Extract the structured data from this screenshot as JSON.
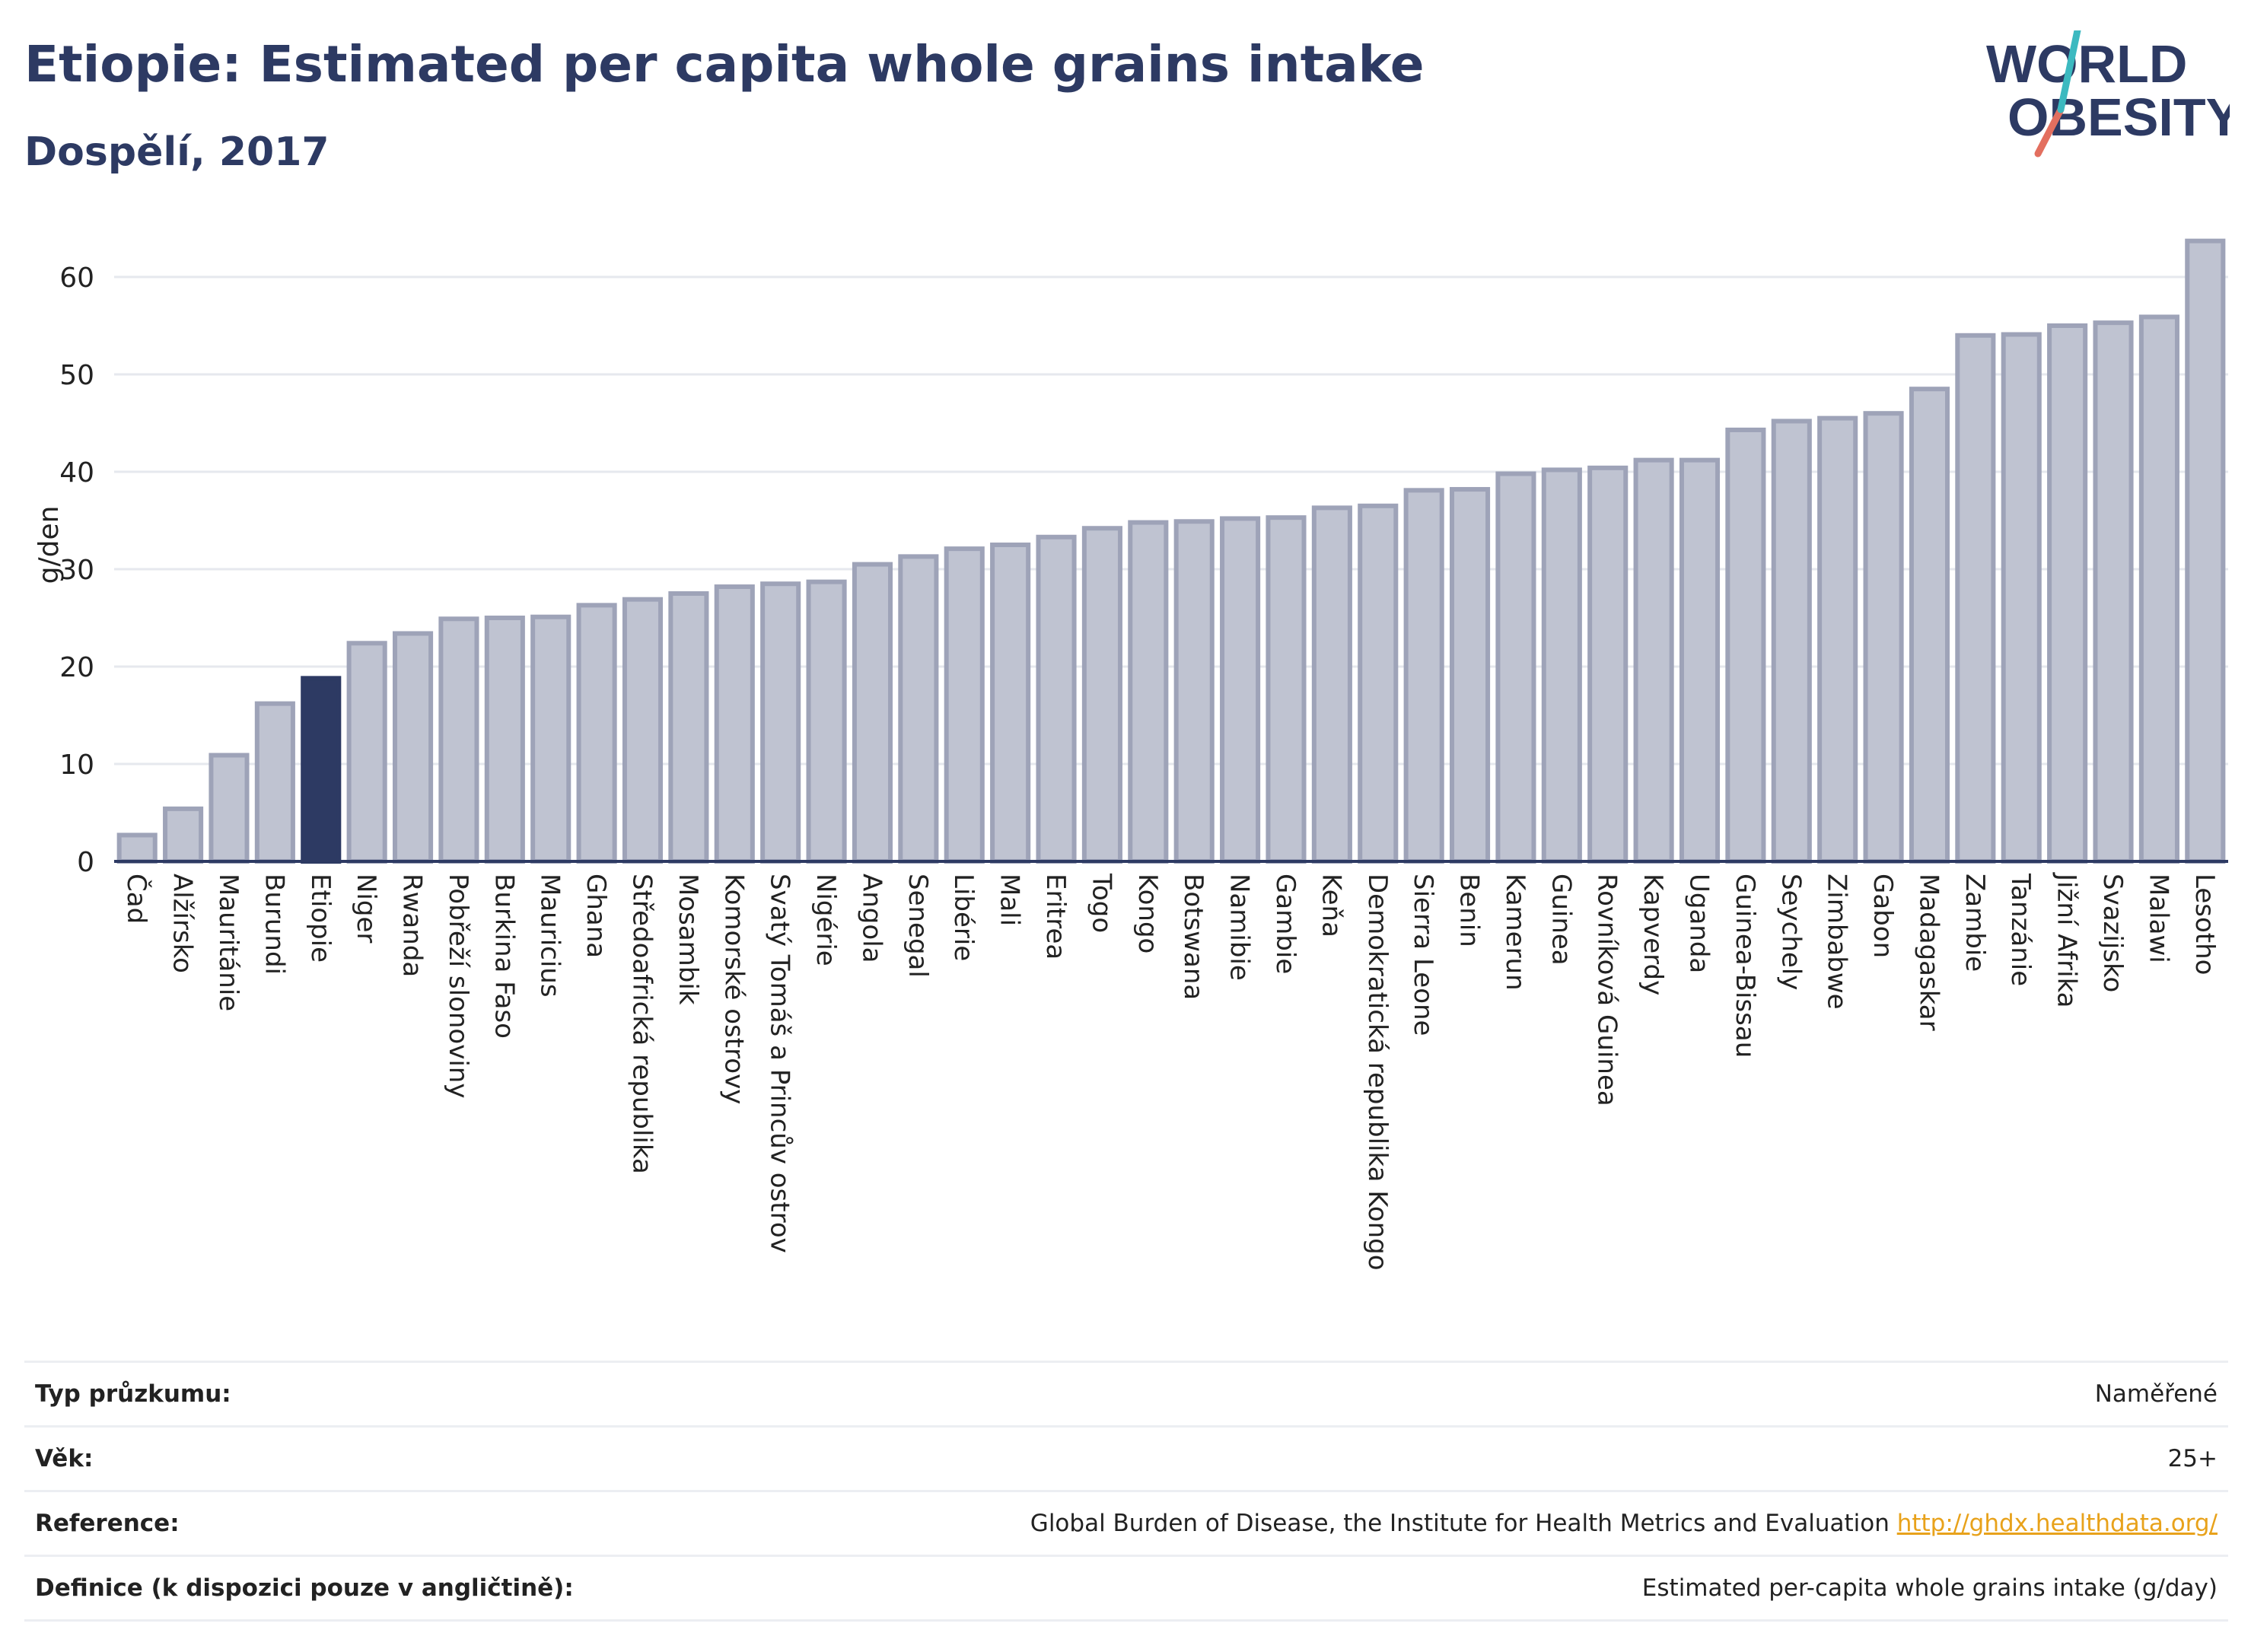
{
  "header": {
    "title": "Etiopie: Estimated per capita whole grains intake",
    "subtitle": "Dospělí, 2017"
  },
  "logo": {
    "line1": "WORLD",
    "line2": "OBESITY"
  },
  "colors": {
    "highlight": "#2d3a63",
    "bar_fill": "#bfc3d1",
    "bar_stroke": "#9ea3b8",
    "grid": "#e6e8ee",
    "axis": "#2d3a63"
  },
  "chart_data": {
    "type": "bar",
    "ylabel": "g/den",
    "ylim": [
      0,
      65
    ],
    "yticks": [
      0,
      10,
      20,
      30,
      40,
      50,
      60
    ],
    "grid": true,
    "highlight": "Etiopie",
    "categories": [
      "Čad",
      "Alžírsko",
      "Mauritánie",
      "Burundi",
      "Etiopie",
      "Niger",
      "Rwanda",
      "Pobřeží slonoviny",
      "Burkina Faso",
      "Mauricius",
      "Ghana",
      "Středoafrická republika",
      "Mosambik",
      "Komorské ostrovy",
      "Svatý Tomáš a Princův ostrov",
      "Nigérie",
      "Angola",
      "Senegal",
      "Libérie",
      "Mali",
      "Eritrea",
      "Togo",
      "Kongo",
      "Botswana",
      "Namibie",
      "Gambie",
      "Keňa",
      "Demokratická republika Kongo",
      "Sierra Leone",
      "Benin",
      "Kamerun",
      "Guinea",
      "Rovníková Guinea",
      "Kapverdy",
      "Uganda",
      "Guinea-Bissau",
      "Seychely",
      "Zimbabwe",
      "Gabon",
      "Madagaskar",
      "Zambie",
      "Tanzánie",
      "Jižní Afrika",
      "Svazijsko",
      "Malawi",
      "Lesotho"
    ],
    "values": [
      2.7,
      5.4,
      10.9,
      16.2,
      18.8,
      22.4,
      23.4,
      24.9,
      25.0,
      25.1,
      26.3,
      26.9,
      27.5,
      28.2,
      28.5,
      28.7,
      30.5,
      31.3,
      32.1,
      32.5,
      33.3,
      34.2,
      34.8,
      34.9,
      35.2,
      35.3,
      36.3,
      36.5,
      38.1,
      38.2,
      39.8,
      40.2,
      40.4,
      41.2,
      41.2,
      44.3,
      45.2,
      45.5,
      46.0,
      48.5,
      54.0,
      54.1,
      55.0,
      55.3,
      55.9,
      63.7
    ]
  },
  "meta": [
    {
      "label": "Typ průzkumu:",
      "value": "Naměřené"
    },
    {
      "label": "Věk:",
      "value": "25+"
    },
    {
      "label": "Reference:",
      "value": "Global Burden of Disease, the Institute for Health Metrics and Evaluation",
      "link": "http://ghdx.healthdata.org/"
    },
    {
      "label": "Definice (k dispozici pouze v angličtině):",
      "value": "Estimated per-capita whole grains intake (g/day)"
    }
  ]
}
